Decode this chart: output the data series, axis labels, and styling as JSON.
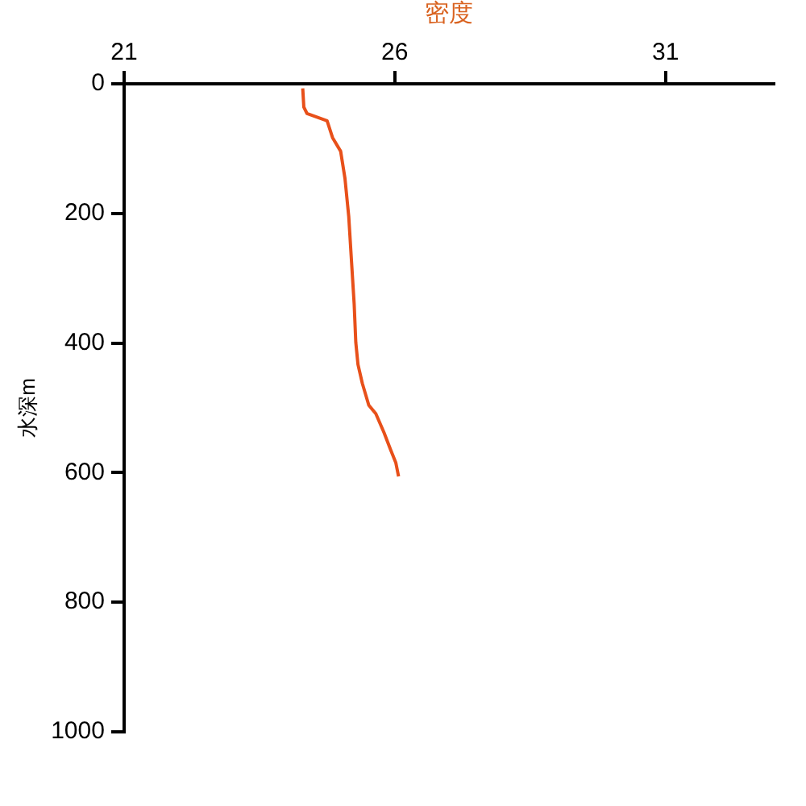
{
  "chart_data": {
    "type": "line",
    "xlabel": "密度",
    "ylabel": "水深m",
    "xlim": [
      21,
      33
    ],
    "xticks": [
      21,
      26,
      31
    ],
    "ylim": [
      1000,
      0
    ],
    "yticks": [
      0,
      200,
      400,
      600,
      800,
      1000
    ],
    "grid": false,
    "legend": false,
    "marker": "none",
    "series": [
      {
        "color": "#e8501a",
        "x": [
          24.3,
          24.32,
          24.38,
          24.75,
          24.85,
          25.0,
          25.08,
          25.15,
          25.2,
          25.25,
          25.28,
          25.32,
          25.4,
          25.52,
          25.65,
          25.8,
          25.92,
          26.02,
          26.07
        ],
        "values": [
          7,
          36,
          46,
          57,
          83,
          104,
          146,
          205,
          273,
          340,
          399,
          433,
          462,
          496,
          509,
          538,
          564,
          585,
          606
        ]
      }
    ]
  }
}
